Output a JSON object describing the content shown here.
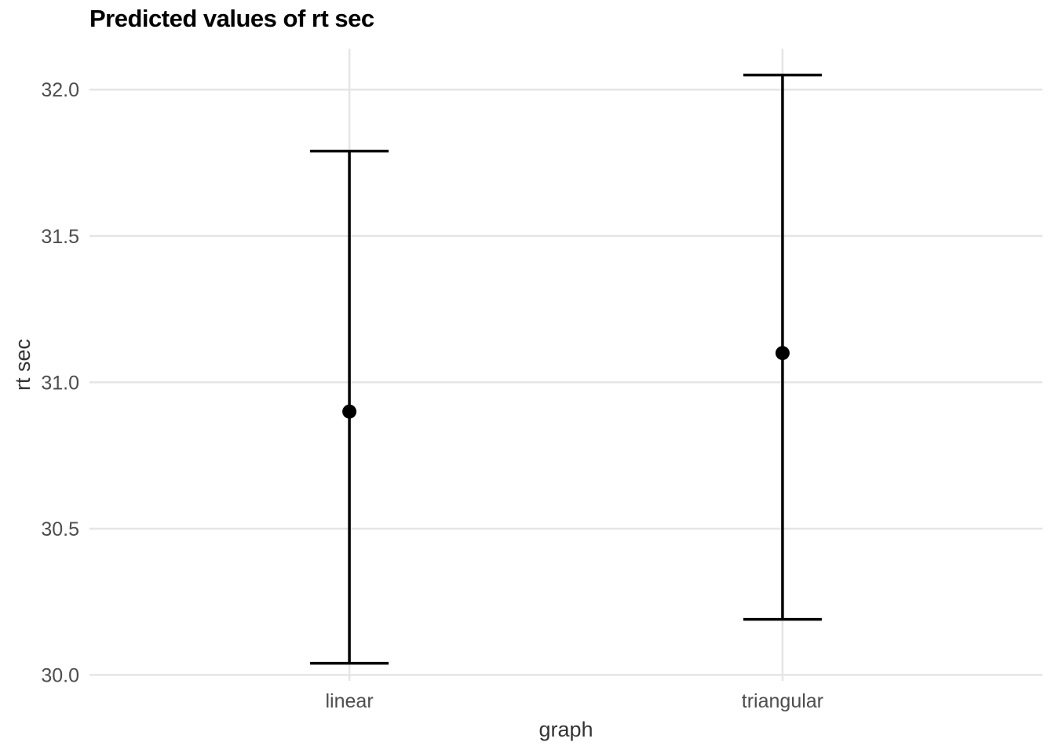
{
  "chart_data": {
    "type": "errorbar",
    "title": "Predicted values of rt sec",
    "xlabel": "graph",
    "ylabel": "rt sec",
    "categories": [
      "linear",
      "triangular"
    ],
    "series": [
      {
        "points": [
          {
            "category": "linear",
            "estimate": 30.9,
            "lower": 30.04,
            "upper": 31.79
          },
          {
            "category": "triangular",
            "estimate": 31.1,
            "lower": 30.19,
            "upper": 32.05
          }
        ]
      }
    ],
    "yticks": [
      "30.0",
      "30.5",
      "31.0",
      "31.5",
      "32.0"
    ],
    "ylim": [
      29.98,
      32.14
    ],
    "grid": true,
    "legend": "none"
  }
}
